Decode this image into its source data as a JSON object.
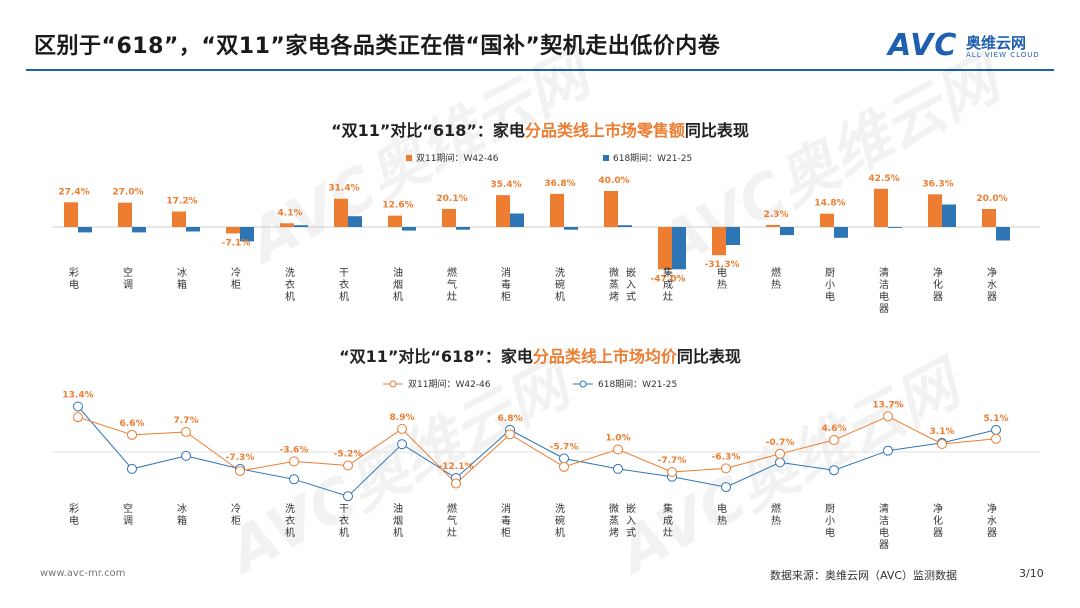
{
  "header": {
    "title": "区别于“618”，“双11”家电各品类正在借“国补”契机走出低价内卷",
    "logo_main": "AVC",
    "logo_cn": "奥维云网",
    "logo_en": "ALL VIEW CLOUD"
  },
  "watermark": {
    "text": "AVC奥维云网",
    "sub": "ALL VIEW CLOUD"
  },
  "footer": {
    "website": "www.avc-mr.com",
    "source": "数据来源：奥维云网（AVC）监测数据",
    "page": "3/10"
  },
  "colors": {
    "orange": "#ed7d31",
    "blue": "#2e75b6",
    "brand": "#1f5fb0"
  },
  "chart_data": [
    {
      "type": "bar",
      "title": "“双11”对比“618”：家电分品类线上市场零售额同比表现",
      "title_parts": [
        "“双11”对比“618”：家电",
        "分品类线上市场零售额",
        "同比表现"
      ],
      "categories": [
        "彩电",
        "空调",
        "冰箱",
        "冷柜",
        "洗衣机",
        "干衣机",
        "油烟机",
        "燃气灶",
        "消毒柜",
        "洗碗机",
        "微蒸烤 嵌入式",
        "集成灶",
        "电热",
        "燃热",
        "厨小电",
        "清洁电器",
        "净化器",
        "净水器"
      ],
      "category_labels": [
        "彩电",
        "空调",
        "冰箱",
        "冷柜",
        "洗衣机",
        "干衣机",
        "油烟机",
        "燃气灶",
        "消毒柜",
        "洗碗机",
        "微蒸烤",
        "集成灶",
        "电热",
        "燃热",
        "厨小电",
        "清洁电器",
        "净化器",
        "净水器"
      ],
      "category_extra": {
        "10": "嵌入式"
      },
      "series": [
        {
          "name": "双11期间：W42-46",
          "color": "#ed7d31",
          "values": [
            27.4,
            27.0,
            17.2,
            -7.1,
            4.1,
            31.4,
            12.6,
            20.1,
            35.4,
            36.8,
            40.0,
            -47.0,
            -31.3,
            2.3,
            14.8,
            42.5,
            36.3,
            20.0
          ]
        },
        {
          "name": "618期间：W21-25",
          "color": "#2e75b6",
          "values": [
            -6,
            -6,
            -5,
            -16,
            2,
            12,
            -4,
            -3,
            15,
            -3,
            2,
            -47,
            -20,
            -9,
            -12,
            -1,
            25,
            -15
          ]
        }
      ],
      "data_labels": [
        "27.4%",
        "27.0%",
        "17.2%",
        "-7.1%",
        "4.1%",
        "31.4%",
        "12.6%",
        "20.1%",
        "35.4%",
        "36.8%",
        "40.0%",
        "-47.0%",
        "-31.3%",
        "2.3%",
        "14.8%",
        "42.5%",
        "36.3%",
        "20.0%"
      ],
      "ylim": [
        -50,
        45
      ],
      "legend": "top-center",
      "grid": false
    },
    {
      "type": "line",
      "title": "“双11”对比“618”：家电分品类线上市场均价同比表现",
      "title_parts": [
        "“双11”对比“618”：家电",
        "分品类线上市场均价",
        "同比表现"
      ],
      "categories": [
        "彩电",
        "空调",
        "冰箱",
        "冷柜",
        "洗衣机",
        "干衣机",
        "油烟机",
        "燃气灶",
        "消毒柜",
        "洗碗机",
        "微蒸烤 嵌入式",
        "集成灶",
        "电热",
        "燃热",
        "厨小电",
        "清洁电器",
        "净化器",
        "净水器"
      ],
      "series": [
        {
          "name": "双11期间：W42-46",
          "color": "#ed7d31",
          "values": [
            13.4,
            6.6,
            7.7,
            -7.3,
            -3.6,
            -5.2,
            8.9,
            -12.1,
            6.8,
            -5.7,
            1.0,
            -7.7,
            -6.3,
            -0.7,
            4.6,
            13.7,
            3.1,
            5.1
          ]
        },
        {
          "name": "618期间：W21-25",
          "color": "#2e75b6",
          "values": [
            17.5,
            -6.5,
            -1.5,
            -6.5,
            -10.5,
            -17,
            3,
            -10,
            8.5,
            -2.5,
            -6.5,
            -9.5,
            -13.5,
            -4,
            -7,
            0.5,
            3.5,
            8.5
          ]
        }
      ],
      "data_labels": [
        "13.4%",
        "6.6%",
        "7.7%",
        "-7.3%",
        "-3.6%",
        "-5.2%",
        "8.9%",
        "-12.1%",
        "6.8%",
        "-5.7%",
        "1.0%",
        "-7.7%",
        "-6.3%",
        "-0.7%",
        "4.6%",
        "13.7%",
        "3.1%",
        "5.1%"
      ],
      "ylim": [
        -20,
        20
      ],
      "legend": "top-center",
      "grid": false
    }
  ]
}
